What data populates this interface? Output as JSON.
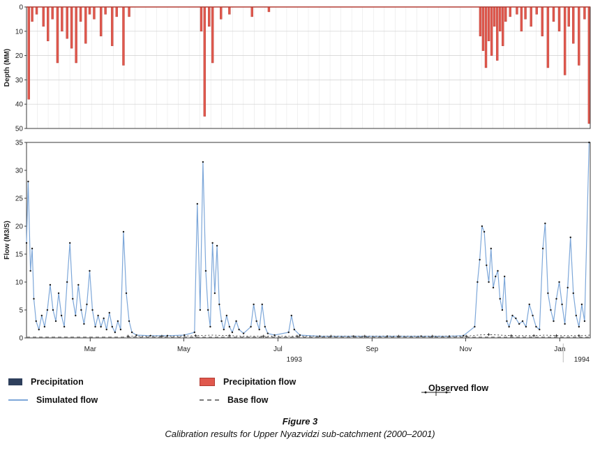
{
  "figure": {
    "caption_title": "Figure 3",
    "caption_text": "Calibration results for Upper Nyazvidzi sub-catchment (2000–2001)"
  },
  "colors": {
    "precip_bar": "#e0584d",
    "precip_edge": "#b23b33",
    "navy": "#2e3f5c",
    "sim_line": "#7da7d9",
    "observed": "#1c1c1c",
    "base": "#7a7a7a",
    "grid": "#cfcfcf",
    "grid_light": "#e6e6e6",
    "axis": "#3a3a3a"
  },
  "legend": {
    "items": [
      {
        "label": "Precipitation",
        "swatch": "navy-bar",
        "col": 0,
        "row": 0
      },
      {
        "label": "Simulated flow",
        "swatch": "blue-line",
        "col": 0,
        "row": 1
      },
      {
        "label": "Precipitation flow",
        "swatch": "red-bar",
        "col": 1,
        "row": 0
      },
      {
        "label": "Base flow",
        "swatch": "dashed-line",
        "col": 1,
        "row": 1
      },
      {
        "label": "Observed flow",
        "swatch": "marker-line",
        "col": 2,
        "row": 0.5
      }
    ]
  },
  "chart_data": [
    {
      "type": "bar",
      "title": "Precipitation hyetograph (inverted)",
      "ylabel": "Depth (MM)",
      "ylim": [
        0,
        50
      ],
      "y_inverted": true,
      "yticks": [
        0,
        10,
        20,
        30,
        40,
        50
      ],
      "grid": true,
      "points": [
        [
          0.004,
          38
        ],
        [
          0.01,
          6
        ],
        [
          0.018,
          3
        ],
        [
          0.03,
          8
        ],
        [
          0.038,
          14
        ],
        [
          0.046,
          5
        ],
        [
          0.055,
          23
        ],
        [
          0.063,
          10
        ],
        [
          0.072,
          13
        ],
        [
          0.08,
          17
        ],
        [
          0.088,
          23
        ],
        [
          0.096,
          6
        ],
        [
          0.105,
          15
        ],
        [
          0.112,
          3
        ],
        [
          0.12,
          5
        ],
        [
          0.132,
          12
        ],
        [
          0.14,
          3
        ],
        [
          0.152,
          16
        ],
        [
          0.16,
          4
        ],
        [
          0.172,
          24
        ],
        [
          0.182,
          4
        ],
        [
          0.31,
          10
        ],
        [
          0.316,
          45
        ],
        [
          0.324,
          8
        ],
        [
          0.33,
          23
        ],
        [
          0.345,
          5
        ],
        [
          0.36,
          3
        ],
        [
          0.4,
          4
        ],
        [
          0.43,
          2
        ],
        [
          0.805,
          12
        ],
        [
          0.81,
          18
        ],
        [
          0.815,
          25
        ],
        [
          0.82,
          14
        ],
        [
          0.825,
          20
        ],
        [
          0.83,
          8
        ],
        [
          0.835,
          22
        ],
        [
          0.84,
          10
        ],
        [
          0.845,
          16
        ],
        [
          0.85,
          6
        ],
        [
          0.858,
          4
        ],
        [
          0.87,
          3
        ],
        [
          0.878,
          10
        ],
        [
          0.885,
          5
        ],
        [
          0.895,
          8
        ],
        [
          0.905,
          3
        ],
        [
          0.915,
          12
        ],
        [
          0.925,
          25
        ],
        [
          0.935,
          6
        ],
        [
          0.945,
          10
        ],
        [
          0.955,
          28
        ],
        [
          0.962,
          8
        ],
        [
          0.97,
          15
        ],
        [
          0.98,
          24
        ],
        [
          0.99,
          5
        ],
        [
          0.998,
          48
        ]
      ]
    },
    {
      "type": "line",
      "title": "Flow hydrograph",
      "ylabel": "Flow (M3/S)",
      "ylim": [
        0,
        35
      ],
      "yticks": [
        0,
        5,
        10,
        15,
        20,
        25,
        30,
        35
      ],
      "grid": false,
      "xticks": [
        {
          "pos": 0.113,
          "label": "Mar"
        },
        {
          "pos": 0.279,
          "label": "May"
        },
        {
          "pos": 0.446,
          "label": "Jul"
        },
        {
          "pos": 0.613,
          "label": "Sep"
        },
        {
          "pos": 0.779,
          "label": "Nov"
        },
        {
          "pos": 0.946,
          "label": "Jan"
        }
      ],
      "year_labels": [
        {
          "pos": 0.475,
          "label": "1993"
        },
        {
          "pos": 0.985,
          "label": "1994"
        }
      ],
      "series": [
        {
          "name": "Simulated flow",
          "style": "line",
          "points": [
            [
              0.0,
              17
            ],
            [
              0.003,
              28
            ],
            [
              0.007,
              12
            ],
            [
              0.01,
              16
            ],
            [
              0.013,
              7
            ],
            [
              0.017,
              3
            ],
            [
              0.022,
              1.5
            ],
            [
              0.027,
              4
            ],
            [
              0.032,
              2
            ],
            [
              0.037,
              5
            ],
            [
              0.042,
              9.5
            ],
            [
              0.047,
              5
            ],
            [
              0.052,
              3
            ],
            [
              0.057,
              8
            ],
            [
              0.062,
              4
            ],
            [
              0.067,
              2
            ],
            [
              0.072,
              10
            ],
            [
              0.077,
              17
            ],
            [
              0.082,
              7
            ],
            [
              0.087,
              4
            ],
            [
              0.092,
              9.5
            ],
            [
              0.097,
              5
            ],
            [
              0.102,
              2.5
            ],
            [
              0.107,
              6
            ],
            [
              0.112,
              12
            ],
            [
              0.117,
              5
            ],
            [
              0.122,
              2
            ],
            [
              0.127,
              4
            ],
            [
              0.132,
              2
            ],
            [
              0.137,
              3.5
            ],
            [
              0.142,
              1.5
            ],
            [
              0.147,
              4.5
            ],
            [
              0.152,
              2
            ],
            [
              0.157,
              1
            ],
            [
              0.162,
              3
            ],
            [
              0.167,
              1.5
            ],
            [
              0.172,
              19
            ],
            [
              0.177,
              8
            ],
            [
              0.182,
              3
            ],
            [
              0.187,
              1
            ],
            [
              0.195,
              0.5
            ],
            [
              0.22,
              0.4
            ],
            [
              0.25,
              0.4
            ],
            [
              0.28,
              0.5
            ],
            [
              0.298,
              1
            ],
            [
              0.303,
              24
            ],
            [
              0.308,
              5
            ],
            [
              0.313,
              31.5
            ],
            [
              0.318,
              12
            ],
            [
              0.322,
              5
            ],
            [
              0.326,
              2
            ],
            [
              0.33,
              17
            ],
            [
              0.334,
              8
            ],
            [
              0.338,
              16.5
            ],
            [
              0.342,
              6
            ],
            [
              0.346,
              3
            ],
            [
              0.35,
              1.5
            ],
            [
              0.355,
              4
            ],
            [
              0.36,
              2
            ],
            [
              0.365,
              1
            ],
            [
              0.372,
              3
            ],
            [
              0.377,
              1.5
            ],
            [
              0.385,
              0.8
            ],
            [
              0.398,
              2
            ],
            [
              0.403,
              6
            ],
            [
              0.408,
              3
            ],
            [
              0.413,
              1.5
            ],
            [
              0.418,
              6
            ],
            [
              0.423,
              2
            ],
            [
              0.428,
              0.8
            ],
            [
              0.44,
              0.5
            ],
            [
              0.465,
              1
            ],
            [
              0.47,
              4
            ],
            [
              0.475,
              1.5
            ],
            [
              0.485,
              0.5
            ],
            [
              0.52,
              0.3
            ],
            [
              0.58,
              0.3
            ],
            [
              0.64,
              0.3
            ],
            [
              0.7,
              0.3
            ],
            [
              0.75,
              0.3
            ],
            [
              0.775,
              0.4
            ],
            [
              0.795,
              2
            ],
            [
              0.8,
              10
            ],
            [
              0.804,
              14
            ],
            [
              0.808,
              20
            ],
            [
              0.812,
              19
            ],
            [
              0.816,
              13
            ],
            [
              0.82,
              10
            ],
            [
              0.824,
              16
            ],
            [
              0.828,
              9
            ],
            [
              0.832,
              11
            ],
            [
              0.836,
              12
            ],
            [
              0.84,
              7
            ],
            [
              0.844,
              5
            ],
            [
              0.848,
              11
            ],
            [
              0.852,
              3
            ],
            [
              0.856,
              2
            ],
            [
              0.862,
              4
            ],
            [
              0.868,
              3.5
            ],
            [
              0.874,
              2.5
            ],
            [
              0.88,
              3
            ],
            [
              0.886,
              2
            ],
            [
              0.892,
              6
            ],
            [
              0.898,
              4
            ],
            [
              0.904,
              2
            ],
            [
              0.91,
              1.5
            ],
            [
              0.916,
              16
            ],
            [
              0.92,
              20.5
            ],
            [
              0.925,
              8
            ],
            [
              0.93,
              5
            ],
            [
              0.935,
              3
            ],
            [
              0.94,
              7
            ],
            [
              0.945,
              10
            ],
            [
              0.95,
              6
            ],
            [
              0.955,
              2.5
            ],
            [
              0.96,
              9
            ],
            [
              0.965,
              18
            ],
            [
              0.97,
              8
            ],
            [
              0.975,
              4
            ],
            [
              0.98,
              2
            ],
            [
              0.985,
              6
            ],
            [
              0.99,
              3
            ],
            [
              0.998,
              35
            ]
          ]
        },
        {
          "name": "Observed flow",
          "style": "marker-line",
          "points": [
            [
              0.18,
              0.3
            ],
            [
              0.21,
              0.3
            ],
            [
              0.24,
              0.3
            ],
            [
              0.27,
              0.3
            ],
            [
              0.3,
              0.4
            ],
            [
              0.33,
              0.5
            ],
            [
              0.36,
              0.4
            ],
            [
              0.39,
              0.3
            ],
            [
              0.42,
              0.3
            ],
            [
              0.45,
              0.3
            ],
            [
              0.48,
              0.3
            ],
            [
              0.51,
              0.3
            ],
            [
              0.54,
              0.3
            ],
            [
              0.57,
              0.3
            ],
            [
              0.6,
              0.3
            ],
            [
              0.63,
              0.3
            ],
            [
              0.66,
              0.3
            ],
            [
              0.69,
              0.3
            ],
            [
              0.72,
              0.3
            ],
            [
              0.75,
              0.3
            ],
            [
              0.78,
              0.3
            ],
            [
              0.8,
              0.5
            ],
            [
              0.82,
              0.6
            ],
            [
              0.84,
              0.5
            ],
            [
              0.86,
              0.4
            ],
            [
              0.88,
              0.4
            ],
            [
              0.9,
              0.4
            ],
            [
              0.92,
              0.5
            ],
            [
              0.94,
              0.4
            ],
            [
              0.96,
              0.4
            ],
            [
              0.98,
              0.4
            ],
            [
              1.0,
              0.5
            ]
          ]
        },
        {
          "name": "Base flow",
          "style": "dashed",
          "points": [
            [
              0.0,
              0.15
            ],
            [
              1.0,
              0.15
            ]
          ]
        }
      ]
    }
  ]
}
